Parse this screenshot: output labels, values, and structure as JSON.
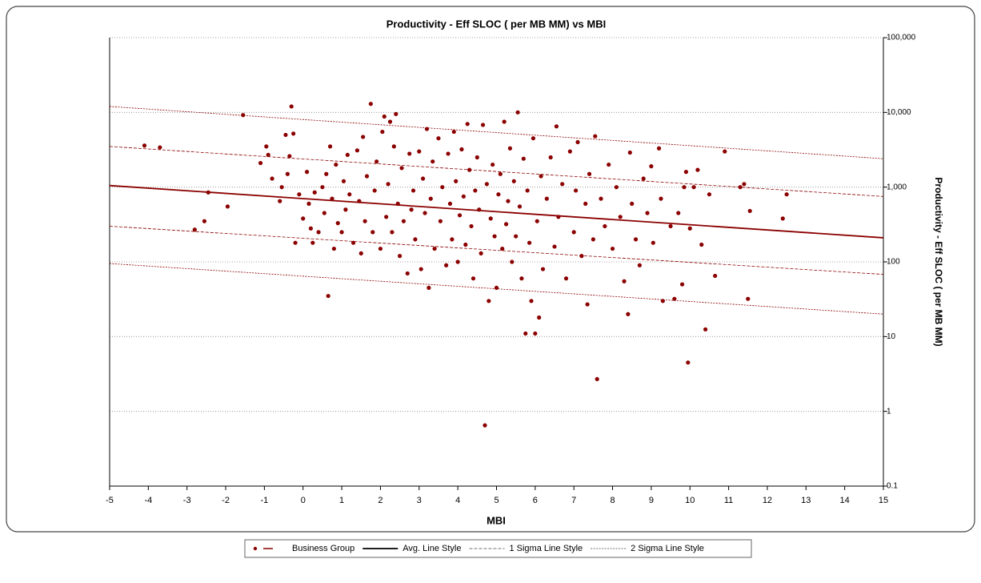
{
  "chart_data": {
    "type": "scatter",
    "title": "Productivity - Eff SLOC ( per MB MM) vs MBI",
    "x_label": "MBI",
    "y_label": "Productivity - Eff SLOC ( per MB MM)",
    "xlim": [
      -5,
      15
    ],
    "xticks": [
      -5,
      -4,
      -3,
      -2,
      -1,
      0,
      1,
      2,
      3,
      4,
      5,
      6,
      7,
      8,
      9,
      10,
      11,
      12,
      13,
      14,
      15
    ],
    "ylim": [
      0.1,
      100000
    ],
    "yticks": [
      0.1,
      1,
      10,
      100,
      {
        "value": 1000,
        "label": "1,000"
      },
      {
        "value": 10000,
        "label": "10,000"
      },
      {
        "value": 100000,
        "label": "100,000"
      }
    ],
    "y_scale": "log",
    "y_axis_side": "right",
    "grid": true,
    "legend_position": "bottom",
    "series": [
      {
        "name": "Business Group",
        "color": "#8b0000",
        "line_style": "points",
        "x": [
          -4.1,
          -3.7,
          -2.8,
          -2.55,
          -2.45,
          -1.95,
          -1.55,
          -1.1,
          -0.95,
          -0.9,
          -0.8,
          -0.6,
          -0.55,
          -0.45,
          -0.4,
          -0.35,
          -0.3,
          -0.25,
          -0.2,
          -0.1,
          0,
          0.1,
          0.15,
          0.2,
          0.25,
          0.3,
          0.4,
          0.5,
          0.55,
          0.6,
          0.65,
          0.7,
          0.75,
          0.8,
          0.85,
          0.9,
          1,
          1.05,
          1.1,
          1.15,
          1.2,
          1.3,
          1.4,
          1.45,
          1.5,
          1.55,
          1.6,
          1.65,
          1.75,
          1.8,
          1.85,
          1.9,
          2,
          2.05,
          2.1,
          2.15,
          2.2,
          2.25,
          2.3,
          2.35,
          2.4,
          2.45,
          2.5,
          2.55,
          2.6,
          2.7,
          2.75,
          2.8,
          2.85,
          2.9,
          3,
          3.05,
          3.1,
          3.15,
          3.2,
          3.25,
          3.3,
          3.35,
          3.4,
          3.5,
          3.55,
          3.6,
          3.7,
          3.75,
          3.8,
          3.85,
          3.9,
          3.95,
          4,
          4.05,
          4.1,
          4.15,
          4.2,
          4.25,
          4.3,
          4.35,
          4.4,
          4.45,
          4.5,
          4.55,
          4.6,
          4.65,
          4.7,
          4.75,
          4.8,
          4.85,
          4.9,
          4.95,
          5,
          5.05,
          5.1,
          5.15,
          5.2,
          5.25,
          5.3,
          5.35,
          5.4,
          5.45,
          5.5,
          5.55,
          5.6,
          5.65,
          5.7,
          5.75,
          5.8,
          5.85,
          5.9,
          5.95,
          6,
          6.05,
          6.1,
          6.15,
          6.2,
          6.3,
          6.4,
          6.5,
          6.55,
          6.6,
          6.7,
          6.8,
          6.9,
          7,
          7.05,
          7.1,
          7.2,
          7.3,
          7.35,
          7.4,
          7.5,
          7.55,
          7.6,
          7.7,
          7.8,
          7.9,
          8,
          8.1,
          8.2,
          8.3,
          8.4,
          8.45,
          8.5,
          8.6,
          8.7,
          8.8,
          8.9,
          9,
          9.05,
          9.2,
          9.25,
          9.3,
          9.5,
          9.6,
          9.7,
          9.8,
          9.85,
          9.9,
          9.95,
          10,
          10.1,
          10.2,
          10.3,
          10.4,
          10.5,
          10.65,
          10.9,
          11.3,
          11.4,
          11.5,
          11.55,
          12.4,
          12.5
        ],
        "values": [
          3600,
          3400,
          270,
          350,
          850,
          550,
          9200,
          2100,
          3500,
          2700,
          1300,
          650,
          1000,
          5000,
          1500,
          2600,
          12000,
          5200,
          180,
          800,
          380,
          1600,
          600,
          280,
          180,
          850,
          250,
          1000,
          450,
          1500,
          35,
          3500,
          700,
          150,
          2000,
          330,
          250,
          1200,
          500,
          2700,
          800,
          180,
          3100,
          650,
          130,
          4700,
          350,
          1400,
          13000,
          250,
          900,
          2200,
          150,
          5500,
          8800,
          400,
          1100,
          7500,
          250,
          3500,
          9500,
          600,
          120,
          1800,
          350,
          70,
          2800,
          500,
          900,
          200,
          3000,
          80,
          1300,
          450,
          6000,
          45,
          700,
          2200,
          150,
          4500,
          350,
          1000,
          90,
          2800,
          600,
          200,
          5500,
          1200,
          100,
          420,
          3200,
          750,
          170,
          7000,
          1700,
          300,
          60,
          900,
          2500,
          500,
          130,
          6800,
          0.65,
          1100,
          30,
          380,
          2000,
          220,
          45,
          800,
          1500,
          150,
          7500,
          320,
          650,
          3300,
          100,
          1200,
          220,
          10000,
          550,
          60,
          2400,
          11,
          900,
          180,
          30,
          4500,
          11,
          350,
          18,
          1400,
          80,
          700,
          2500,
          160,
          6500,
          400,
          1100,
          60,
          3000,
          250,
          900,
          4000,
          120,
          600,
          27,
          1500,
          200,
          4800,
          2.7,
          700,
          300,
          2000,
          150,
          1000,
          400,
          55,
          20,
          2900,
          600,
          200,
          90,
          1300,
          450,
          1900,
          180,
          3300,
          700,
          30,
          300,
          32,
          450,
          50,
          1000,
          1600,
          4.5,
          280,
          1000,
          1700,
          170,
          12.5,
          800,
          65,
          3000,
          1000,
          1100,
          32,
          480,
          380,
          800
        ]
      },
      {
        "name": "Avg. Line Style",
        "color": "#8b0000",
        "line_style": "solid",
        "x": [
          -5,
          15
        ],
        "values": [
          1050,
          210
        ]
      },
      {
        "name": "1 Sigma Line Style",
        "color": "#8b0000",
        "line_style": "dashed",
        "x": [
          -5,
          15
        ],
        "values": [
          3500,
          750
        ],
        "lower": [
          300,
          68
        ]
      },
      {
        "name": "2 Sigma Line Style",
        "color": "#8b0000",
        "line_style": "dotted",
        "x": [
          -5,
          15
        ],
        "values": [
          12000,
          2400
        ],
        "lower": [
          95,
          20
        ]
      }
    ]
  }
}
